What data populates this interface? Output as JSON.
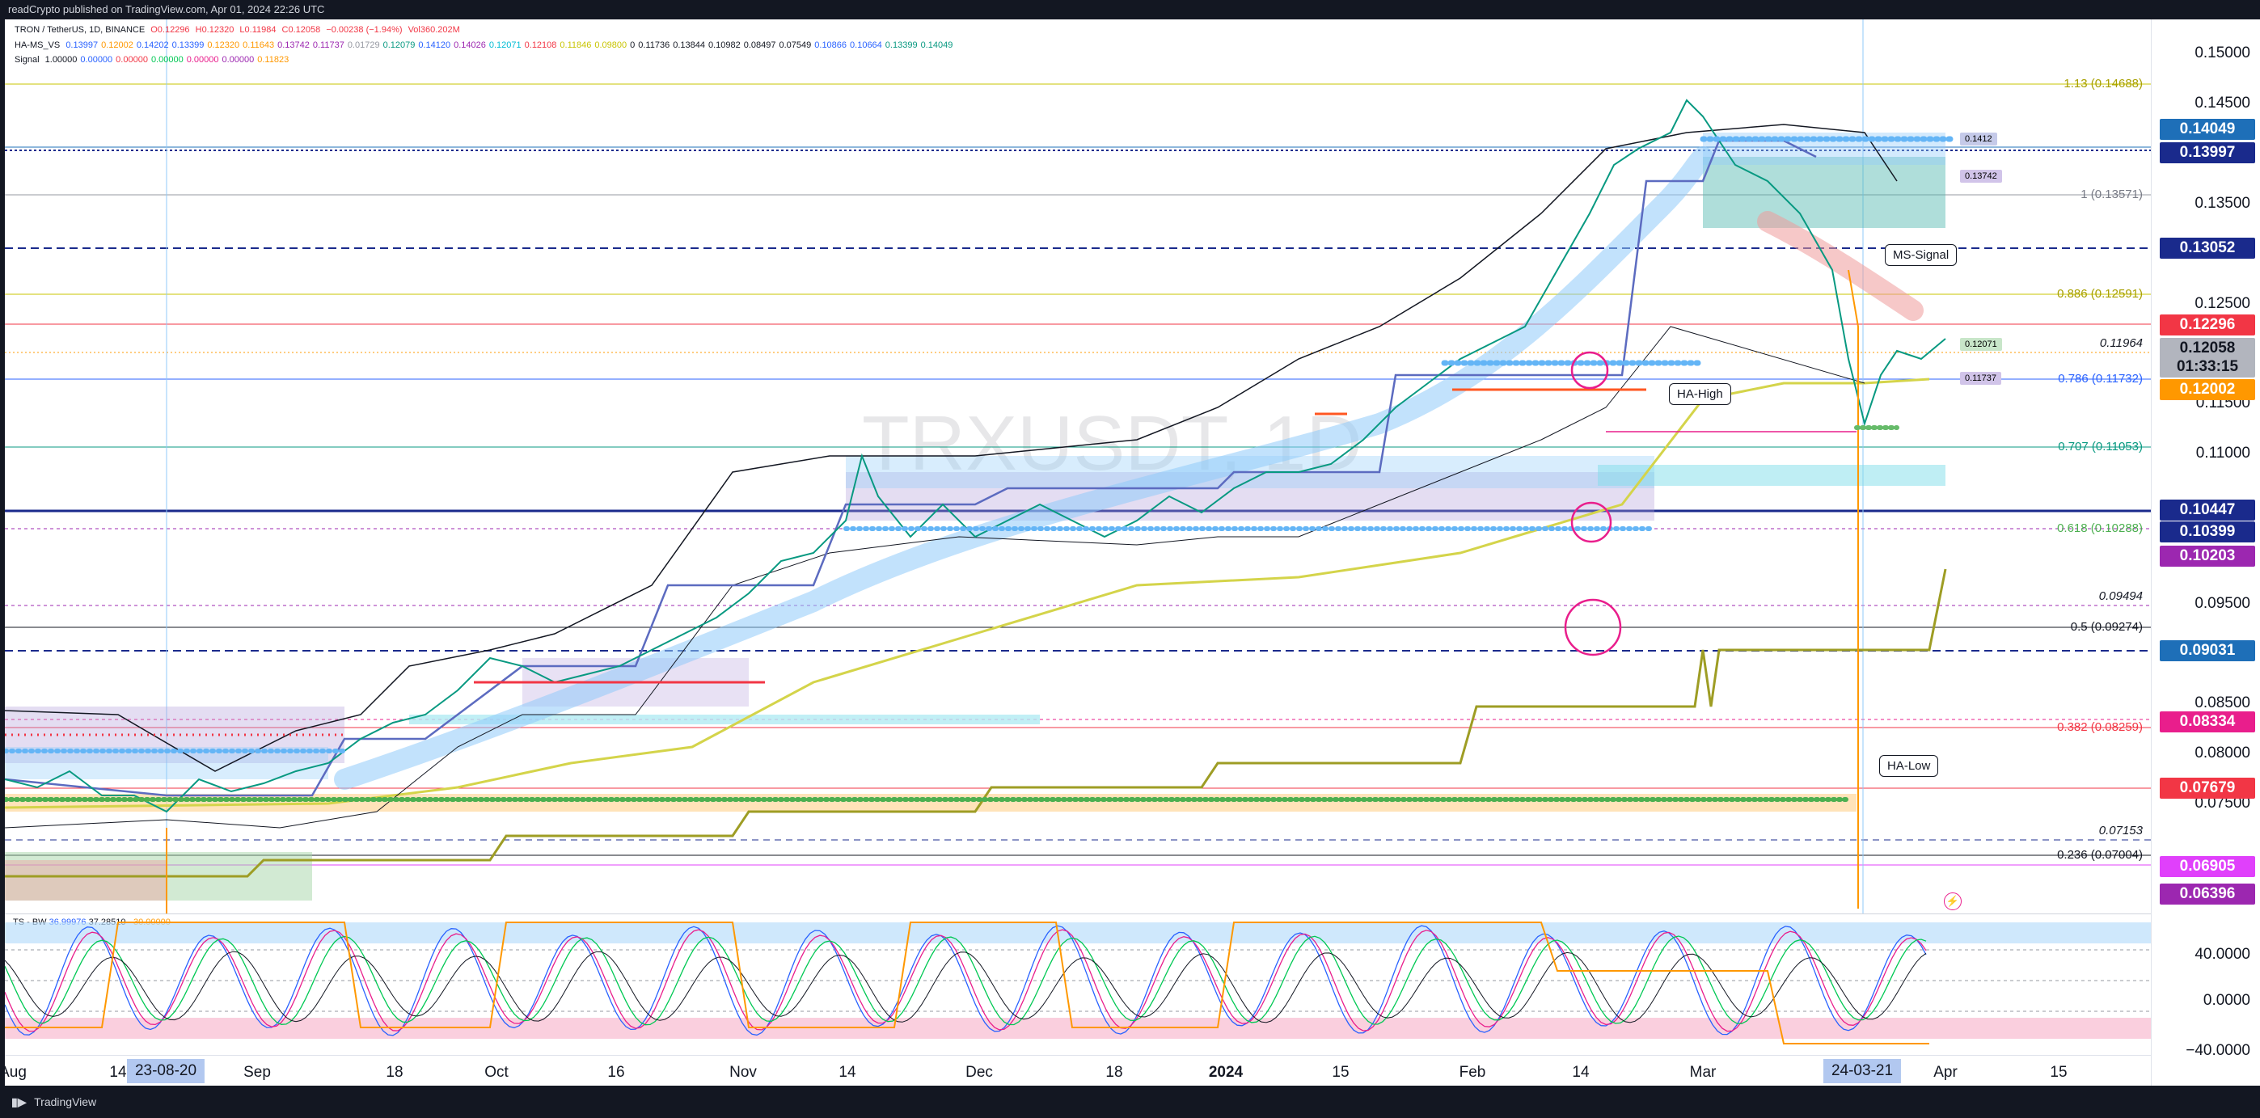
{
  "header": {
    "publish_line": "readCrypto published on TradingView.com, Apr 01, 2024 22:26 UTC"
  },
  "legend": {
    "symbol_line": "TRON / TetherUS, 1D, BINANCE",
    "ohlc": [
      "O0.12296",
      "H0.12320",
      "L0.11984",
      "C0.12058",
      "−0.00238 (−1.94%)",
      "Vol360.202M"
    ],
    "hams_label": "HA-MS_VS",
    "hams_values": [
      "0.13997",
      "0.12002",
      "0.14202",
      "0.13399",
      "0.12320",
      "0.11643",
      "0.13742",
      "0.11737",
      "0.01729",
      "0.12079",
      "0.14120",
      "0.14026",
      "0.12071",
      "0.12108",
      "0.11846",
      "0.09800",
      "0",
      "0.11736",
      "0.13844",
      "0.10982",
      "0.08497",
      "0.07549",
      "0.10866",
      "0.10664",
      "0.13399",
      "0.14049"
    ],
    "signal_label": "Signal",
    "signal_values": [
      "1.00000",
      "0.00000",
      "0.00000",
      "0.00000",
      "0.00000",
      "0.00000",
      "0.11823"
    ]
  },
  "watermark": {
    "text": "TRXUSDT, 1D"
  },
  "y_axis": {
    "ticks": [
      "0.15000",
      "0.14500",
      "0.13500",
      "0.12500",
      "0.11500",
      "0.11000",
      "0.09500",
      "0.08500",
      "0.08000",
      "0.07500"
    ],
    "badges": [
      {
        "text": "0.14049",
        "color": "#1e6fb8"
      },
      {
        "text": "0.13997",
        "color": "#1a2a8c"
      },
      {
        "text": "0.13052",
        "color": "#1a2a8c"
      },
      {
        "text": "0.12296",
        "color": "#f23645"
      },
      {
        "text": "0.12058",
        "color": "#b2b5be"
      },
      {
        "text": "01:33:15",
        "color": "#b2b5be"
      },
      {
        "text": "0.12002",
        "color": "#ff9800"
      },
      {
        "text": "0.10447",
        "color": "#1a2a8c"
      },
      {
        "text": "0.10399",
        "color": "#1a2a8c"
      },
      {
        "text": "0.10203",
        "color": "#9c27b0"
      },
      {
        "text": "0.09031",
        "color": "#1e6fb8"
      },
      {
        "text": "0.08334",
        "color": "#e91e8c"
      },
      {
        "text": "0.07679",
        "color": "#f23645"
      },
      {
        "text": "0.06905",
        "color": "#e040fb"
      },
      {
        "text": "0.06396",
        "color": "#9c27b0"
      }
    ]
  },
  "fib_levels": [
    {
      "text": "1.13 (0.14688)",
      "color": "#a8a000"
    },
    {
      "text": "1 (0.13571)",
      "color": "#787b86"
    },
    {
      "text": "0.886 (0.12591)",
      "color": "#a8a000"
    },
    {
      "text": "0.786 (0.11732)",
      "color": "#2962ff"
    },
    {
      "text": "0.707 (0.11053)",
      "color": "#089981"
    },
    {
      "text": "0.618 (0.10288)",
      "color": "#4caf50"
    },
    {
      "text": "0.5 (0.09274)",
      "color": "#131722"
    },
    {
      "text": "0.382 (0.08259)",
      "color": "#f23645"
    },
    {
      "text": "0.236 (0.07004)",
      "color": "#131722"
    }
  ],
  "price_labels": [
    "0.11964",
    "0.09494",
    "0.07153"
  ],
  "tags": [
    {
      "text": "0.1412",
      "bg": "#c5cae9"
    },
    {
      "text": "0.13742",
      "bg": "#d1c4e9"
    },
    {
      "text": "0.12071",
      "bg": "#c8e6c9"
    },
    {
      "text": "0.11737",
      "bg": "#d1c4e9"
    }
  ],
  "callouts": {
    "ms_signal": "MS-Signal",
    "ha_high": "HA-High",
    "ha_low": "HA-Low"
  },
  "oscillator": {
    "label": "TS - BW",
    "values": [
      "36.99976",
      "37.28510",
      "−30.00000"
    ],
    "ticks": [
      "40.0000",
      "0.0000",
      "−40.0000"
    ]
  },
  "x_axis": {
    "ticks": [
      "Aug",
      "14",
      "Sep",
      "18",
      "Oct",
      "16",
      "Nov",
      "14",
      "Dec",
      "18",
      "2024",
      "15",
      "Feb",
      "14",
      "Mar",
      "Apr",
      "15"
    ],
    "badges": [
      "23-08-20",
      "24-03-21"
    ]
  },
  "footer": {
    "brand": "TradingView"
  }
}
